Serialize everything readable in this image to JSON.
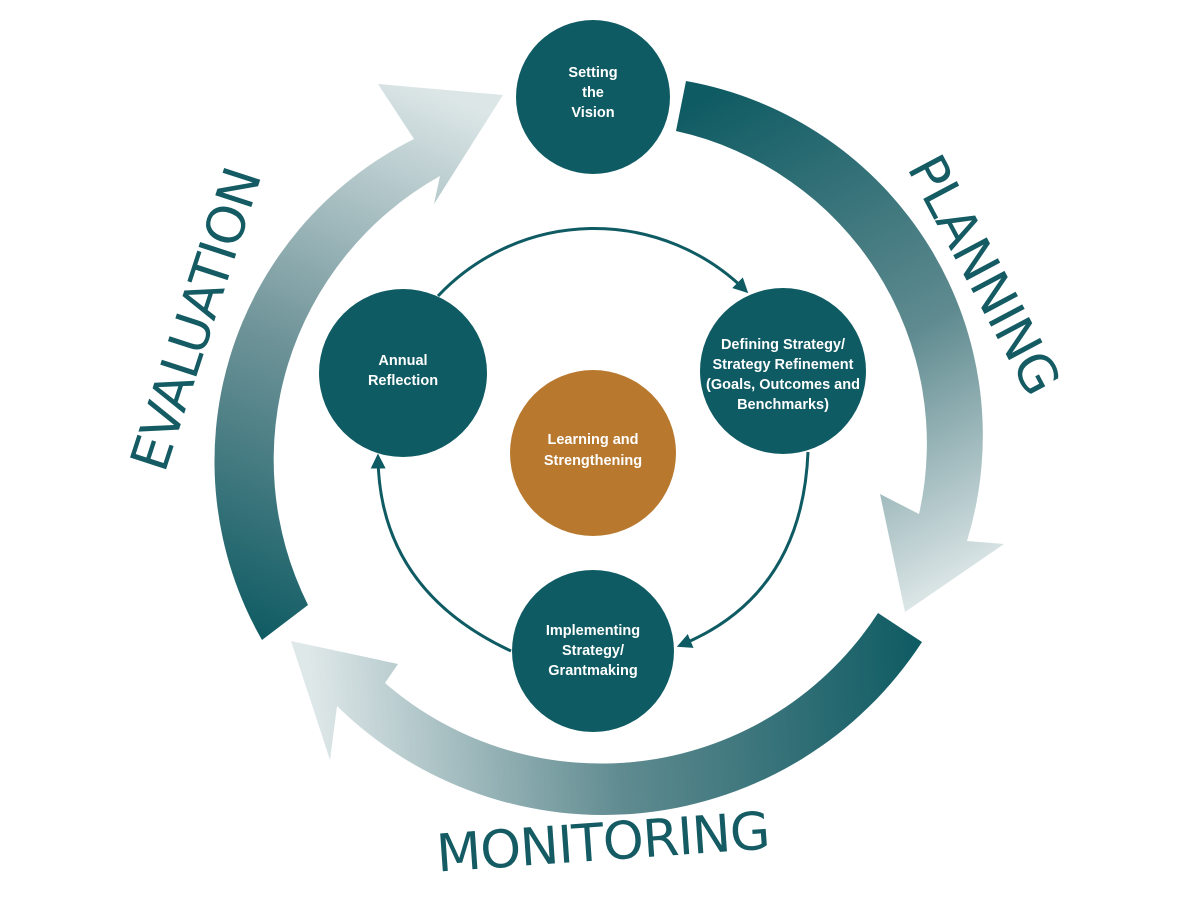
{
  "colors": {
    "teal": "#0f5b63",
    "teal_light": "#d4e1e2",
    "orange": "#b8782d",
    "white": "#ffffff"
  },
  "phases": {
    "planning": "PLANNING",
    "monitoring": "MONITORING",
    "evaluation": "EVALUATION"
  },
  "nodes": {
    "vision": [
      "Setting",
      "the",
      "Vision"
    ],
    "defining": [
      "Defining Strategy/",
      "Strategy Refinement",
      "(Goals, Outcomes and",
      "Benchmarks)"
    ],
    "implementing": [
      "Implementing",
      "Strategy/",
      "Grantmaking"
    ],
    "reflection": [
      "Annual",
      "Reflection"
    ],
    "learning": [
      "Learning and",
      "Strengthening"
    ]
  }
}
